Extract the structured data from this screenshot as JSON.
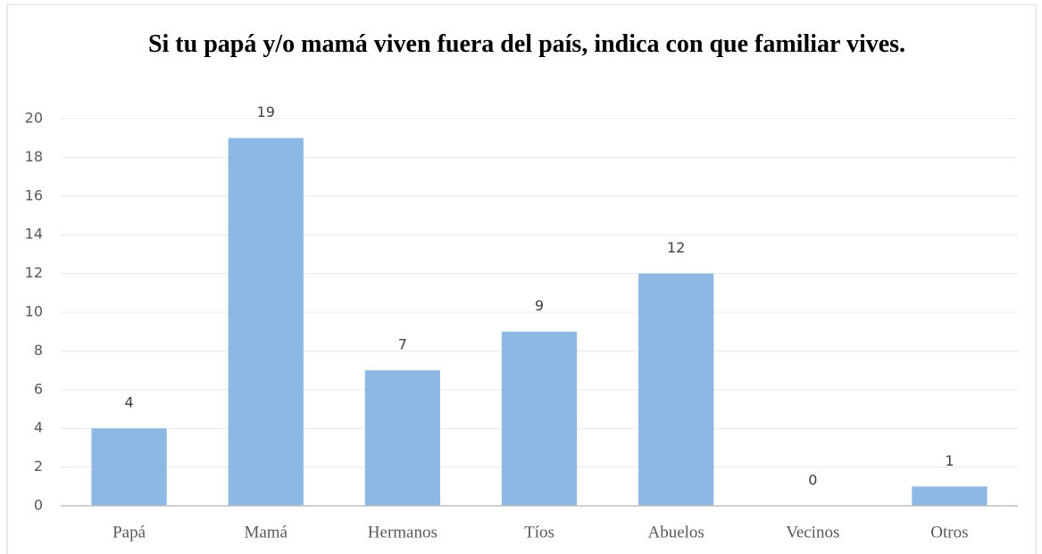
{
  "chart_data": {
    "type": "bar",
    "title": "Si tu papá y/o mamá viven fuera del país, indica con que familiar vives.",
    "categories": [
      "Papá",
      "Mamá",
      "Hermanos",
      "Tíos",
      "Abuelos",
      "Vecinos",
      "Otros"
    ],
    "values": [
      4,
      19,
      7,
      9,
      12,
      0,
      1
    ],
    "color": "#8db8e3",
    "ylim": [
      0,
      20
    ],
    "yticks": [
      0,
      2,
      4,
      6,
      8,
      10,
      12,
      14,
      16,
      18,
      20
    ],
    "grid": true
  }
}
